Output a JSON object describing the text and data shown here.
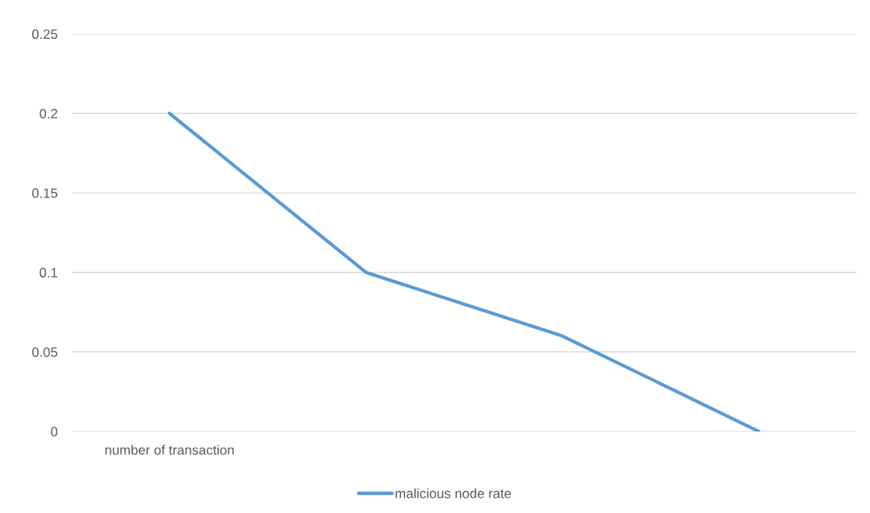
{
  "chart_data": {
    "type": "line",
    "categories": [
      "number of transaction",
      null,
      null,
      null
    ],
    "series": [
      {
        "name": "malicious node rate",
        "color": "#5b9bd5",
        "values": [
          0.2,
          0.1,
          0.06,
          0
        ]
      }
    ],
    "ylim": [
      0,
      0.25
    ],
    "yticks": [
      0,
      0.05,
      0.1,
      0.15,
      0.2,
      0.25
    ],
    "grid": "y",
    "legend": "bottom",
    "marker": "none",
    "line_style": "solid"
  }
}
